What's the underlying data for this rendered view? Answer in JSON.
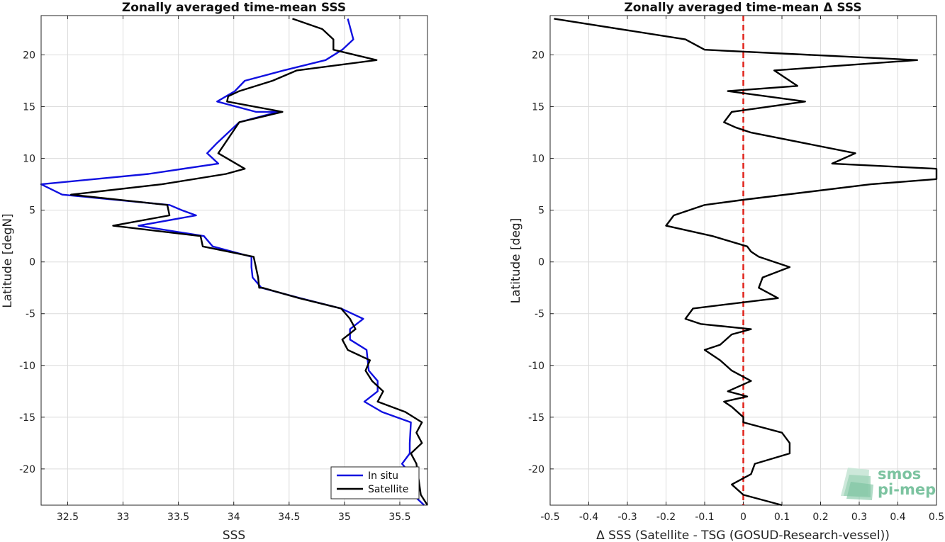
{
  "colors": {
    "insitu": "#1010e0",
    "satellite": "#000000",
    "zero_line": "#e0231b",
    "logo": "#7cc3a0"
  },
  "logo": {
    "line1": "smos",
    "line2": "pi-mep"
  },
  "chart_data": [
    {
      "type": "line",
      "title": "Zonally averaged time-mean SSS",
      "xlabel": "SSS",
      "ylabel": "Latitude [degN]",
      "xlim": [
        32.26,
        35.75
      ],
      "ylim": [
        -23.5,
        23.8
      ],
      "xticks": [
        32.5,
        33,
        33.5,
        34,
        34.5,
        35,
        35.5
      ],
      "xtick_labels": [
        "32.5",
        "33",
        "33.5",
        "34",
        "34.5",
        "35",
        "35.5"
      ],
      "yticks": [
        -20,
        -15,
        -10,
        -5,
        0,
        5,
        10,
        15,
        20
      ],
      "ytick_labels": [
        "-20",
        "-15",
        "-10",
        "-5",
        "0",
        "5",
        "10",
        "15",
        "20"
      ],
      "grid": true,
      "legend_position": "bottom-right",
      "series": [
        {
          "name": "In situ",
          "color_key": "insitu",
          "x": [
            35.03,
            35.08,
            34.98,
            34.83,
            34.45,
            34.1,
            34.01,
            33.85,
            34.2,
            34.4,
            34.05,
            33.85,
            33.76,
            33.86,
            33.23,
            32.26,
            32.45,
            33.42,
            33.53,
            33.66,
            33.14,
            33.73,
            33.81,
            34.16,
            34.16,
            34.17,
            34.25,
            34.6,
            34.97,
            35.17,
            35.05,
            35.05,
            35.2,
            35.22,
            35.3,
            35.3,
            35.18,
            35.34,
            35.6,
            35.59,
            35.59,
            35.52,
            35.6,
            35.62,
            35.72
          ],
          "y": [
            23.5,
            21.5,
            20.5,
            19.5,
            18.5,
            17.5,
            16.5,
            15.5,
            14.5,
            14.5,
            13.5,
            11.5,
            10.5,
            9.5,
            8.5,
            7.5,
            6.5,
            5.5,
            5.0,
            4.5,
            3.5,
            2.5,
            1.5,
            0.5,
            -0.5,
            -1.5,
            -2.5,
            -3.5,
            -4.5,
            -5.5,
            -6.5,
            -7.5,
            -8.5,
            -10.5,
            -11.5,
            -12.5,
            -13.5,
            -14.5,
            -15.5,
            -17.5,
            -18.5,
            -19.5,
            -20.5,
            -22.5,
            -23.5
          ]
        },
        {
          "name": "Satellite",
          "color_key": "satellite",
          "x": [
            34.53,
            34.8,
            34.9,
            34.9,
            35.29,
            34.57,
            34.35,
            34.05,
            33.95,
            33.94,
            34.44,
            34.05,
            33.86,
            34.1,
            33.93,
            33.35,
            32.53,
            33.4,
            33.42,
            32.91,
            33.7,
            33.72,
            34.18,
            34.22,
            34.23,
            34.26,
            34.59,
            34.97,
            35.05,
            35.1,
            34.98,
            35.03,
            35.23,
            35.19,
            35.25,
            35.35,
            35.3,
            35.55,
            35.7,
            35.65,
            35.7,
            35.6,
            35.65,
            35.69,
            35.75
          ],
          "y": [
            23.5,
            22.5,
            21.5,
            20.5,
            19.5,
            18.5,
            17.5,
            16.5,
            16.0,
            15.5,
            14.5,
            13.5,
            10.5,
            9.0,
            8.5,
            7.5,
            6.5,
            5.5,
            4.5,
            3.5,
            2.5,
            1.5,
            0.5,
            -1.5,
            -2.5,
            -2.5,
            -3.5,
            -4.5,
            -5.5,
            -6.5,
            -7.5,
            -8.5,
            -9.5,
            -10.5,
            -11.5,
            -12.5,
            -13.5,
            -14.5,
            -15.5,
            -16.5,
            -17.5,
            -18.5,
            -19.5,
            -22.5,
            -23.5
          ]
        }
      ]
    },
    {
      "type": "line",
      "title": "Zonally averaged time-mean Δ SSS",
      "xlabel": "Δ SSS (Satellite - TSG (GOSUD-Research-vessel))",
      "ylabel": "Latitude [deg]",
      "xlim": [
        -0.5,
        0.5
      ],
      "ylim": [
        -23.5,
        23.8
      ],
      "xticks": [
        -0.5,
        -0.4,
        -0.3,
        -0.2,
        -0.1,
        0,
        0.1,
        0.2,
        0.3,
        0.4,
        0.5
      ],
      "xtick_labels": [
        "-0.5",
        "-0.4",
        "-0.3",
        "-0.2",
        "-0.1",
        "0",
        "0.1",
        "0.2",
        "0.3",
        "0.4",
        "0.5"
      ],
      "yticks": [
        -20,
        -15,
        -10,
        -5,
        0,
        5,
        10,
        15,
        20
      ],
      "ytick_labels": [
        "-20",
        "-15",
        "-10",
        "-5",
        "0",
        "5",
        "10",
        "15",
        "20"
      ],
      "grid": true,
      "reference_line_x": 0,
      "series": [
        {
          "color_key": "satellite",
          "x": [
            -0.49,
            -0.15,
            -0.1,
            0.45,
            0.08,
            0.14,
            -0.04,
            0.16,
            -0.03,
            -0.05,
            -0.02,
            0.02,
            0.29,
            0.23,
            0.5,
            0.5,
            0.33,
            0.0,
            -0.1,
            -0.18,
            -0.2,
            -0.08,
            0.01,
            0.02,
            0.04,
            0.12,
            0.05,
            0.04,
            0.09,
            -0.13,
            -0.15,
            -0.11,
            0.02,
            -0.03,
            -0.06,
            -0.1,
            -0.06,
            -0.03,
            0.02,
            -0.04,
            0.01,
            -0.05,
            -0.03,
            0.0,
            0.0,
            0.1,
            0.12,
            0.12,
            0.03,
            0.02,
            -0.03,
            0.0,
            0.1
          ],
          "y": [
            23.5,
            21.5,
            20.5,
            19.5,
            18.5,
            17.0,
            16.5,
            15.5,
            14.5,
            13.5,
            13.0,
            12.5,
            10.5,
            9.5,
            9.0,
            8.0,
            7.5,
            6.0,
            5.5,
            4.5,
            3.5,
            2.5,
            1.5,
            1.0,
            0.5,
            -0.5,
            -1.5,
            -2.5,
            -3.5,
            -4.5,
            -5.5,
            -6.0,
            -6.5,
            -7.0,
            -8.0,
            -8.5,
            -9.5,
            -10.5,
            -11.5,
            -12.5,
            -13.0,
            -13.5,
            -14.0,
            -15.0,
            -15.5,
            -16.5,
            -17.5,
            -18.5,
            -19.5,
            -20.5,
            -21.5,
            -22.5,
            -23.5
          ]
        }
      ]
    }
  ]
}
